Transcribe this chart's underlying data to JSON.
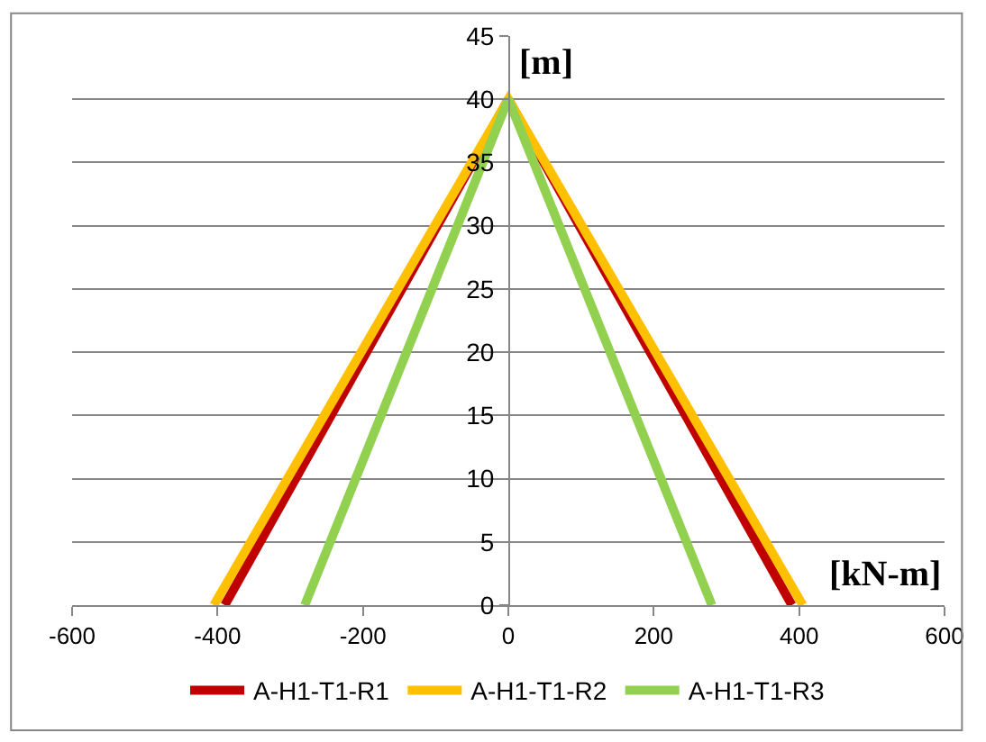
{
  "chart_data": {
    "type": "line",
    "xlabel": "[kN-m]",
    "ylabel": "[m]",
    "series": [
      {
        "name": "A-H1-T1-R1",
        "color": "#c00000",
        "x": [
          -390,
          0,
          390
        ],
        "values": [
          0,
          40,
          0
        ]
      },
      {
        "name": "A-H1-T1-R2",
        "color": "#ffc000",
        "x": [
          -405,
          0,
          405
        ],
        "values": [
          0,
          40,
          0
        ]
      },
      {
        "name": "A-H1-T1-R3",
        "color": "#92d050",
        "x": [
          -280,
          0,
          280
        ],
        "values": [
          0,
          40,
          0
        ]
      }
    ],
    "xlim": [
      -600,
      600
    ],
    "xticks": [
      -600,
      -400,
      -200,
      0,
      200,
      400,
      600
    ],
    "ylim": [
      0,
      45
    ],
    "yticks": [
      0,
      5,
      10,
      15,
      20,
      25,
      30,
      35,
      40,
      45
    ],
    "grid": "y",
    "legend": "bottom",
    "marker": "none",
    "line_style": "solid"
  }
}
